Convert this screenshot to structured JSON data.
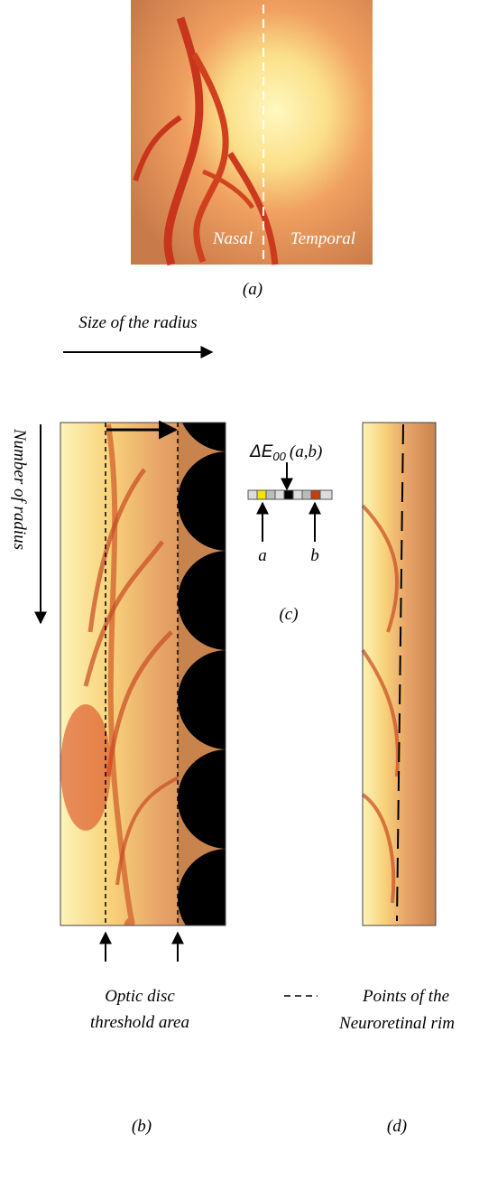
{
  "figure": {
    "panel_a": {
      "nasal": "Nasal",
      "temporal": "Temporal",
      "caption": "(a)"
    },
    "panel_b": {
      "x_axis_label": "Size of the radius",
      "y_axis_label": "Number of radius",
      "annotation": [
        "Optic disc",
        "threshold area"
      ],
      "caption": "(b)"
    },
    "panel_c": {
      "formula": "ΔE",
      "subscript": "00",
      "arguments": "(a,b)",
      "point_a": "a",
      "point_b": "b",
      "caption": "(c)"
    },
    "panel_d": {
      "legend": [
        "Points of the",
        "Neuroretinal rim"
      ],
      "caption": "(d)"
    }
  }
}
